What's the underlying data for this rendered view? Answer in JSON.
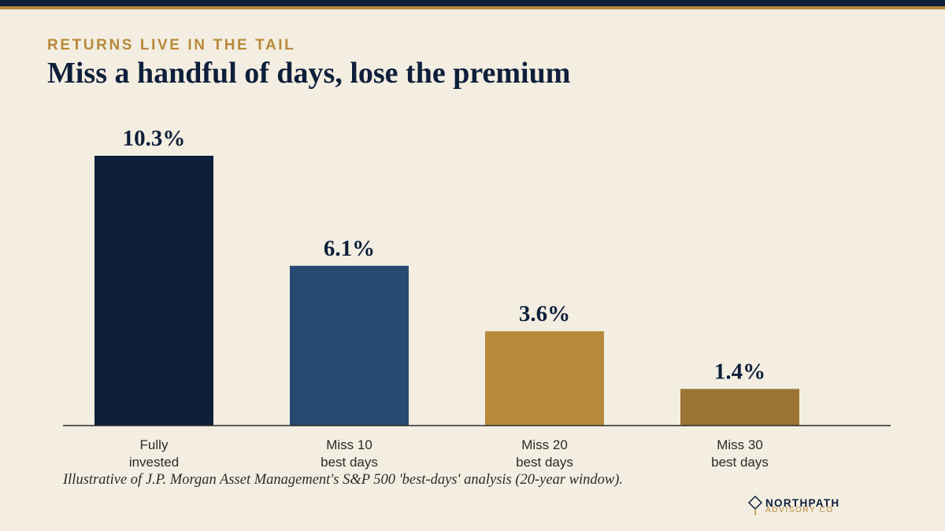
{
  "header": {
    "kicker": "RETURNS LIVE IN THE TAIL",
    "title": "Miss a handful of days, lose the premium"
  },
  "chart_data": {
    "type": "bar",
    "title": "Miss a handful of days, lose the premium",
    "categories": [
      [
        "Fully",
        "invested"
      ],
      [
        "Miss 10",
        "best days"
      ],
      [
        "Miss 20",
        "best days"
      ],
      [
        "Miss 30",
        "best days"
      ]
    ],
    "values": [
      10.3,
      6.1,
      3.6,
      1.4
    ],
    "value_labels": [
      "10.3%",
      "6.1%",
      "3.6%",
      "1.4%"
    ],
    "colors": [
      "#0e1f3b",
      "#284a72",
      "#b8893a",
      "#9a7432"
    ],
    "xlabel": "",
    "ylabel": "",
    "ylim": [
      0,
      10.3
    ],
    "grid": false,
    "legend": "none"
  },
  "footnote": "Illustrative of J.P. Morgan Asset Management's S&P 500 'best-days' analysis (20-year window).",
  "logo": {
    "name": "NORTHPATH",
    "sub": "ADVISORY CO"
  },
  "colors": {
    "background": "#f3eee1",
    "navy": "#0e1f3b",
    "gold": "#b8893a"
  }
}
